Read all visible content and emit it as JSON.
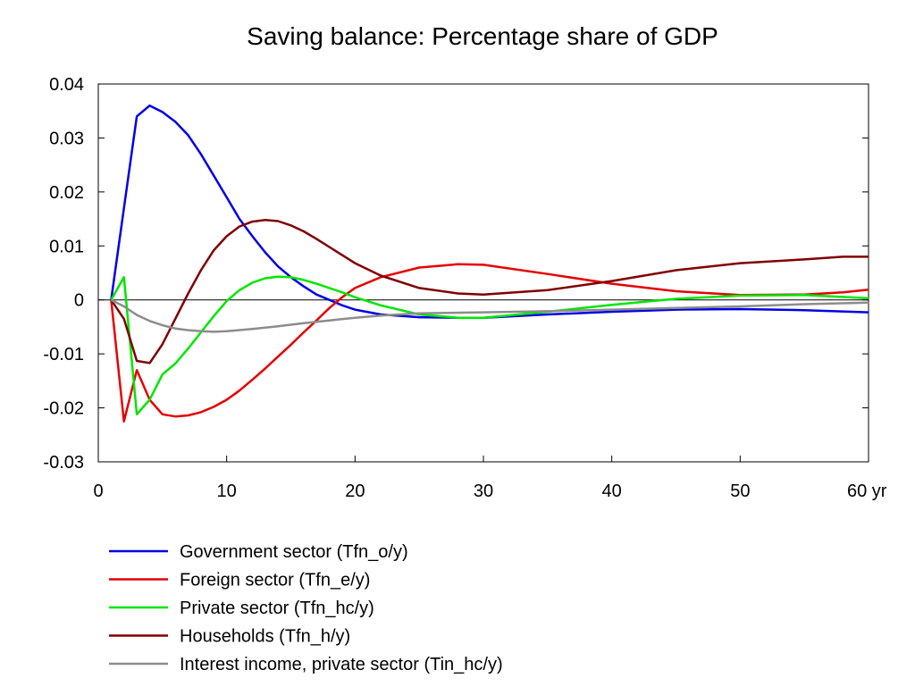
{
  "chart_data": {
    "type": "line",
    "title": "Saving balance: Percentage share of GDP",
    "xlabel": "",
    "ylabel": "",
    "x_unit": "yr",
    "xlim": [
      0,
      60
    ],
    "ylim": [
      -0.03,
      0.04
    ],
    "xticks": [
      0,
      10,
      20,
      30,
      40,
      50,
      60
    ],
    "xtick_labels": [
      "0",
      "10",
      "20",
      "30",
      "40",
      "50",
      "60 yr"
    ],
    "yticks": [
      -0.03,
      -0.02,
      -0.01,
      0,
      0.01,
      0.02,
      0.03,
      0.04
    ],
    "ytick_labels": [
      "-0.03",
      "-0.02",
      "-0.01",
      "0",
      "0.01",
      "0.02",
      "0.03",
      "0.04"
    ],
    "grid": false,
    "zero_line": true,
    "legend_position": "bottom-left",
    "series": [
      {
        "name": "Government sector (Tfn_o/y)",
        "color": "#0000e6",
        "x": [
          1,
          2,
          3,
          4,
          5,
          6,
          7,
          8,
          9,
          10,
          11,
          12,
          13,
          14,
          15,
          16,
          17,
          18,
          19,
          20,
          22,
          25,
          28,
          30,
          35,
          40,
          45,
          50,
          55,
          60
        ],
        "y": [
          0.0,
          0.017,
          0.034,
          0.036,
          0.0348,
          0.033,
          0.0305,
          0.027,
          0.023,
          0.019,
          0.015,
          0.0118,
          0.0088,
          0.0062,
          0.0042,
          0.0025,
          0.001,
          0.0,
          -0.001,
          -0.0018,
          -0.0027,
          -0.0032,
          -0.0033,
          -0.0033,
          -0.0027,
          -0.0022,
          -0.0018,
          -0.0017,
          -0.0019,
          -0.0023
        ]
      },
      {
        "name": "Foreign sector (Tfn_e/y)",
        "color": "#e60000",
        "x": [
          1,
          2,
          3,
          4,
          5,
          6,
          7,
          8,
          9,
          10,
          11,
          12,
          13,
          14,
          15,
          16,
          17,
          18,
          19,
          20,
          22,
          25,
          28,
          30,
          35,
          40,
          45,
          50,
          55,
          58,
          60
        ],
        "y": [
          0.0,
          -0.0225,
          -0.013,
          -0.0185,
          -0.0212,
          -0.0216,
          -0.0214,
          -0.0208,
          -0.0198,
          -0.0185,
          -0.0168,
          -0.0148,
          -0.0127,
          -0.0105,
          -0.0083,
          -0.006,
          -0.0038,
          -0.0015,
          0.0005,
          0.0022,
          0.0042,
          0.006,
          0.0066,
          0.0065,
          0.0048,
          0.003,
          0.0016,
          0.0009,
          0.001,
          0.0014,
          0.0019
        ]
      },
      {
        "name": "Private sector (Tfn_hc/y)",
        "color": "#00e600",
        "x": [
          1,
          2,
          3,
          4,
          5,
          6,
          7,
          8,
          9,
          10,
          11,
          12,
          13,
          14,
          15,
          16,
          17,
          18,
          19,
          20,
          22,
          25,
          28,
          30,
          35,
          40,
          45,
          50,
          55,
          60
        ],
        "y": [
          0.0,
          0.0042,
          -0.0212,
          -0.0185,
          -0.0138,
          -0.0118,
          -0.009,
          -0.006,
          -0.003,
          -0.0002,
          0.0018,
          0.0032,
          0.004,
          0.0043,
          0.0042,
          0.0037,
          0.003,
          0.0022,
          0.0014,
          0.0005,
          -0.001,
          -0.0027,
          -0.0033,
          -0.0033,
          -0.0022,
          -0.0009,
          0.0002,
          0.0008,
          0.0009,
          0.0003
        ]
      },
      {
        "name": "Households (Tfn_h/y)",
        "color": "#800000",
        "x": [
          1,
          2,
          3,
          4,
          5,
          6,
          7,
          8,
          9,
          10,
          11,
          12,
          13,
          14,
          15,
          16,
          17,
          18,
          19,
          20,
          22,
          25,
          28,
          30,
          35,
          40,
          45,
          50,
          55,
          58,
          60
        ],
        "y": [
          0.0,
          -0.0035,
          -0.0113,
          -0.0117,
          -0.0082,
          -0.0035,
          0.0012,
          0.0055,
          0.0092,
          0.0118,
          0.0136,
          0.0145,
          0.0148,
          0.0146,
          0.0138,
          0.0127,
          0.0113,
          0.0098,
          0.0083,
          0.0068,
          0.0045,
          0.0022,
          0.0012,
          0.001,
          0.0018,
          0.0035,
          0.0055,
          0.0068,
          0.0075,
          0.008,
          0.008
        ]
      },
      {
        "name": "Interest income, private sector (Tin_hc/y)",
        "color": "#8c8c8c",
        "x": [
          1,
          2,
          3,
          4,
          5,
          6,
          7,
          8,
          9,
          10,
          12,
          14,
          16,
          18,
          20,
          22,
          25,
          30,
          35,
          40,
          45,
          50,
          55,
          60
        ],
        "y": [
          0.0,
          -0.0012,
          -0.0028,
          -0.0039,
          -0.0047,
          -0.0053,
          -0.0056,
          -0.0058,
          -0.0059,
          -0.0058,
          -0.0054,
          -0.0049,
          -0.0043,
          -0.0038,
          -0.0033,
          -0.0029,
          -0.0025,
          -0.0023,
          -0.0021,
          -0.0018,
          -0.0015,
          -0.0012,
          -0.0008,
          -0.0005
        ]
      }
    ]
  }
}
